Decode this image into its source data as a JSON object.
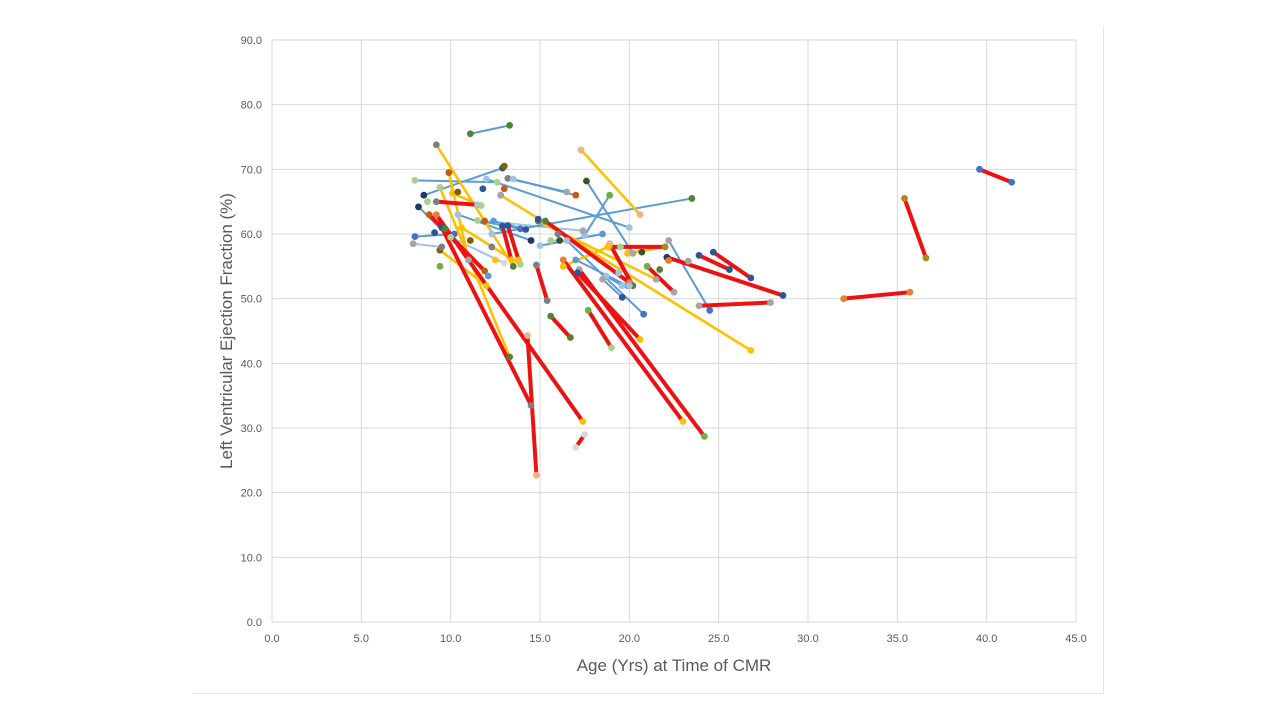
{
  "chart_data": {
    "type": "line",
    "title": "",
    "xlabel": "Age (Yrs) at Time of CMR",
    "ylabel": "Left Ventricular Ejection Fraction (%)",
    "xlim": [
      0,
      45
    ],
    "ylim": [
      0,
      90
    ],
    "xticks": [
      "0.0",
      "5.0",
      "10.0",
      "15.0",
      "20.0",
      "25.0",
      "30.0",
      "35.0",
      "40.0",
      "45.0"
    ],
    "yticks": [
      "0.0",
      "10.0",
      "20.0",
      "30.0",
      "40.0",
      "50.0",
      "60.0",
      "70.0",
      "80.0",
      "90.0"
    ],
    "grid": true,
    "legend": "none",
    "colors": {
      "red": "#ee1111",
      "yellow": "#ffc000",
      "blue": "#5b9bd5",
      "lightblue": "#9dc3e6",
      "axis": "#d9d9d9",
      "text": "#595959"
    },
    "series": [
      {
        "color": "red",
        "x": [
          39.6,
          41.4
        ],
        "y": [
          70.0,
          68.0
        ],
        "c1": "#4472c4",
        "c2": "#4472c4"
      },
      {
        "color": "red",
        "x": [
          35.4,
          36.6
        ],
        "y": [
          65.5,
          56.3
        ],
        "c1": "#b0871f",
        "c2": "#b0871f"
      },
      {
        "color": "red",
        "x": [
          32.0,
          35.7
        ],
        "y": [
          50.0,
          51.0
        ],
        "c1": "#ed7d31",
        "c2": "#ed7d31"
      },
      {
        "color": "red",
        "x": [
          24.7,
          26.8
        ],
        "y": [
          57.2,
          53.2
        ],
        "c1": "#2f5597",
        "c2": "#2f5597"
      },
      {
        "color": "red",
        "x": [
          22.1,
          28.6
        ],
        "y": [
          56.4,
          50.5
        ],
        "c1": "#1f3864",
        "c2": "#2f5597"
      },
      {
        "color": "red",
        "x": [
          23.9,
          25.6
        ],
        "y": [
          56.7,
          54.5
        ],
        "c1": "#2f5597",
        "c2": "#2f5597"
      },
      {
        "color": "red",
        "x": [
          23.9,
          27.9
        ],
        "y": [
          48.9,
          49.4
        ],
        "c1": "#a5a5a5",
        "c2": "#a5a5a5"
      },
      {
        "color": "red",
        "x": [
          18.9,
          22.0
        ],
        "y": [
          58.0,
          58.0
        ],
        "c1": "#b0871f",
        "c2": "#b0871f"
      },
      {
        "color": "red",
        "x": [
          21.0,
          22.5
        ],
        "y": [
          55.0,
          51.0
        ],
        "c1": "#70ad47",
        "c2": "#a5a5a5"
      },
      {
        "color": "red",
        "x": [
          16.3,
          23.0
        ],
        "y": [
          56.0,
          31.0
        ],
        "c1": "#ed7d31",
        "c2": "#ffc000"
      },
      {
        "color": "red",
        "x": [
          17.2,
          24.2
        ],
        "y": [
          54.5,
          28.7
        ],
        "c1": "#a5a5a5",
        "c2": "#70ad47"
      },
      {
        "color": "red",
        "x": [
          17.7,
          19.0
        ],
        "y": [
          48.2,
          42.4
        ],
        "c1": "#70ad47",
        "c2": "#a9d18e"
      },
      {
        "color": "red",
        "x": [
          17.1,
          20.6
        ],
        "y": [
          54.0,
          43.7
        ],
        "c1": "#2f5597",
        "c2": "#ffc000"
      },
      {
        "color": "red",
        "x": [
          15.3,
          20.0
        ],
        "y": [
          62.0,
          52.5
        ],
        "c1": "#548235",
        "c2": "#ed7d31"
      },
      {
        "color": "red",
        "x": [
          14.8,
          15.4
        ],
        "y": [
          55.2,
          49.7
        ],
        "c1": "#7f7f7f",
        "c2": "#7f7f7f"
      },
      {
        "color": "red",
        "x": [
          14.3,
          14.8
        ],
        "y": [
          44.3,
          22.7
        ],
        "c1": "#f4b183",
        "c2": "#f4b183"
      },
      {
        "color": "red",
        "x": [
          15.6,
          16.7
        ],
        "y": [
          47.3,
          44.0
        ],
        "c1": "#548235",
        "c2": "#548235"
      },
      {
        "color": "red",
        "x": [
          17.0,
          17.5
        ],
        "y": [
          27.0,
          29.0
        ],
        "c1": "#d9d9d9",
        "c2": "#d9d9d9"
      },
      {
        "color": "red",
        "x": [
          9.5,
          14.5
        ],
        "y": [
          61.0,
          33.5
        ],
        "c1": "#2f5597",
        "c2": "#7f7f7f"
      },
      {
        "color": "red",
        "x": [
          9.2,
          17.4
        ],
        "y": [
          63.0,
          31.0
        ],
        "c1": "#ed7d31",
        "c2": "#ffc000"
      },
      {
        "color": "red",
        "x": [
          9.2,
          11.5
        ],
        "y": [
          65.0,
          64.5
        ],
        "c1": "#7f7f7f",
        "c2": "#9dc3e6"
      },
      {
        "color": "red",
        "x": [
          8.8,
          11.9
        ],
        "y": [
          63.0,
          54.3
        ],
        "c1": "#c55a11",
        "c2": "#c55a11"
      },
      {
        "color": "red",
        "x": [
          12.9,
          13.4
        ],
        "y": [
          61.2,
          56.0
        ],
        "c1": "#2f5597",
        "c2": "#ffc000"
      },
      {
        "color": "red",
        "x": [
          13.2,
          13.8
        ],
        "y": [
          61.3,
          56.0
        ],
        "c1": "#2f5597",
        "c2": "#ffc000"
      },
      {
        "color": "red",
        "x": [
          18.9,
          20.2
        ],
        "y": [
          58.5,
          52.0
        ],
        "c1": "#f4b183",
        "c2": "#548235"
      },
      {
        "color": "yellow",
        "x": [
          17.3,
          20.6
        ],
        "y": [
          73.0,
          63.0
        ],
        "c1": "#f4b183",
        "c2": "#f4b183"
      },
      {
        "color": "yellow",
        "x": [
          9.2,
          13.5
        ],
        "y": [
          73.8,
          55.0
        ],
        "c1": "#7f7f7f",
        "c2": "#548235"
      },
      {
        "color": "yellow",
        "x": [
          12.8,
          26.8
        ],
        "y": [
          66.0,
          42.0
        ],
        "c1": "#a5a5a5",
        "c2": "#ffc000"
      },
      {
        "color": "yellow",
        "x": [
          9.4,
          13.3
        ],
        "y": [
          67.2,
          41.0
        ],
        "c1": "#a9d18e",
        "c2": "#548235"
      },
      {
        "color": "yellow",
        "x": [
          9.4,
          12.0
        ],
        "y": [
          57.5,
          52.0
        ],
        "c1": "#7f6000",
        "c2": "#ffc000"
      },
      {
        "color": "yellow",
        "x": [
          10.6,
          13.9
        ],
        "y": [
          61.0,
          55.3
        ],
        "c1": "#ffc000",
        "c2": "#a9d18e"
      },
      {
        "color": "yellow",
        "x": [
          9.9,
          11.0
        ],
        "y": [
          69.5,
          56.0
        ],
        "c1": "#c55a11",
        "c2": "#a5a5a5"
      },
      {
        "color": "yellow",
        "x": [
          14.9,
          21.5
        ],
        "y": [
          62.0,
          53.0
        ],
        "c1": "#548235",
        "c2": "#a5a5a5"
      },
      {
        "color": "yellow",
        "x": [
          16.3,
          18.8
        ],
        "y": [
          55.0,
          58.0
        ],
        "c1": "#ffc000",
        "c2": "#ffc000"
      },
      {
        "color": "yellow",
        "x": [
          19.9,
          22.0
        ],
        "y": [
          57.0,
          58.0
        ],
        "c1": "#ffc000",
        "c2": "#b0871f"
      },
      {
        "color": "yellow",
        "x": [
          10.1,
          11.7
        ],
        "y": [
          66.3,
          64.4
        ],
        "c1": "#ffc000",
        "c2": "#a9d18e"
      },
      {
        "color": "blue",
        "x": [
          11.1,
          13.3
        ],
        "y": [
          75.5,
          76.8
        ],
        "c1": "#548235",
        "c2": "#548235"
      },
      {
        "color": "blue",
        "x": [
          8.0,
          12.6
        ],
        "y": [
          68.3,
          68.0
        ],
        "c1": "#a9d18e",
        "c2": "#a9d18e"
      },
      {
        "color": "blue",
        "x": [
          8.5,
          12.9
        ],
        "y": [
          66.0,
          70.2
        ],
        "c1": "#1f3864",
        "c2": "#2f5597"
      },
      {
        "color": "blue",
        "x": [
          12.0,
          20.0
        ],
        "y": [
          68.5,
          61.0
        ],
        "c1": "#9dc3e6",
        "c2": "#9dc3e6"
      },
      {
        "color": "blue",
        "x": [
          13.2,
          16.5
        ],
        "y": [
          68.6,
          66.5
        ],
        "c1": "#7f7f7f",
        "c2": "#a5a5a5"
      },
      {
        "color": "blue",
        "x": [
          13.5,
          17.0
        ],
        "y": [
          68.5,
          66.0
        ],
        "c1": "#9dc3e6",
        "c2": "#c55a11"
      },
      {
        "color": "blue",
        "x": [
          12.3,
          23.5
        ],
        "y": [
          60.0,
          65.5
        ],
        "c1": "#9dc3e6",
        "c2": "#548235"
      },
      {
        "color": "blue",
        "x": [
          8.2,
          12.1
        ],
        "y": [
          64.2,
          53.5
        ],
        "c1": "#1f3864",
        "c2": "#5b9bd5"
      },
      {
        "color": "blue",
        "x": [
          8.0,
          10.2
        ],
        "y": [
          59.6,
          60.0
        ],
        "c1": "#4472c4",
        "c2": "#4472c4"
      },
      {
        "color": "blue",
        "x": [
          10.4,
          14.5
        ],
        "y": [
          63.0,
          59.0
        ],
        "c1": "#9dc3e6",
        "c2": "#1f3864"
      },
      {
        "color": "blue",
        "x": [
          11.5,
          13.9
        ],
        "y": [
          62.1,
          60.8
        ],
        "c1": "#a9d18e",
        "c2": "#4472c4"
      },
      {
        "color": "blue",
        "x": [
          12.4,
          14.2
        ],
        "y": [
          62.0,
          60.7
        ],
        "c1": "#5b9bd5",
        "c2": "#2f5597"
      },
      {
        "color": "blue",
        "x": [
          15.0,
          18.5
        ],
        "y": [
          58.2,
          60.0
        ],
        "c1": "#9dc3e6",
        "c2": "#5b9bd5"
      },
      {
        "color": "blue",
        "x": [
          16.5,
          20.8
        ],
        "y": [
          59.0,
          47.6
        ],
        "c1": "#9dc3e6",
        "c2": "#4472c4"
      },
      {
        "color": "blue",
        "x": [
          17.0,
          19.9
        ],
        "y": [
          56.0,
          52.0
        ],
        "c1": "#5b9bd5",
        "c2": "#5b9bd5"
      },
      {
        "color": "blue",
        "x": [
          18.7,
          19.6
        ],
        "y": [
          53.5,
          52.0
        ],
        "c1": "#9dc3e6",
        "c2": "#9dc3e6"
      },
      {
        "color": "blue",
        "x": [
          19.4,
          20.0
        ],
        "y": [
          54.0,
          52.0
        ],
        "c1": "#9dc3e6",
        "c2": "#9dc3e6"
      },
      {
        "color": "blue",
        "x": [
          18.5,
          19.6
        ],
        "y": [
          53.0,
          50.2
        ],
        "c1": "#a5a5a5",
        "c2": "#2f5597"
      },
      {
        "color": "blue",
        "x": [
          22.2,
          24.5
        ],
        "y": [
          59.0,
          48.2
        ],
        "c1": "#a5a5a5",
        "c2": "#4472c4"
      },
      {
        "color": "blue",
        "x": [
          17.6,
          20.2
        ],
        "y": [
          68.2,
          57.0
        ],
        "c1": "#375623",
        "c2": "#a5a5a5"
      },
      {
        "color": "blue",
        "x": [
          17.5,
          18.9
        ],
        "y": [
          59.8,
          66.0
        ],
        "c1": "#9dc3e6",
        "c2": "#70ad47"
      },
      {
        "color": "lightblue",
        "x": [
          11.9,
          17.4
        ],
        "y": [
          62.0,
          60.5
        ],
        "c1": "#c55a11",
        "c2": "#a5a5a5"
      },
      {
        "color": "lightblue",
        "x": [
          10.0,
          13.0
        ],
        "y": [
          59.5,
          55.5
        ],
        "c1": "#a9d18e",
        "c2": "#d9d9d9"
      },
      {
        "color": "lightblue",
        "x": [
          15.6,
          16.1
        ],
        "y": [
          59.0,
          59.0
        ],
        "c1": "#a9d18e",
        "c2": "#375623"
      },
      {
        "color": "lightblue",
        "x": [
          7.9,
          9.5
        ],
        "y": [
          58.5,
          58.0
        ],
        "c1": "#a5a5a5",
        "c2": "#7f7f7f"
      }
    ],
    "extra_points": [
      {
        "x": 9.4,
        "y": 55.0,
        "c": "#70ad47"
      },
      {
        "x": 9.1,
        "y": 60.2,
        "c": "#2f5597"
      },
      {
        "x": 11.1,
        "y": 59.0,
        "c": "#7f6000"
      },
      {
        "x": 10.4,
        "y": 66.5,
        "c": "#7f6000"
      },
      {
        "x": 12.3,
        "y": 58.0,
        "c": "#7f7f7f"
      },
      {
        "x": 12.5,
        "y": 56.0,
        "c": "#ffc000"
      },
      {
        "x": 14.9,
        "y": 62.3,
        "c": "#2f5597"
      },
      {
        "x": 20.7,
        "y": 57.2,
        "c": "#375623"
      },
      {
        "x": 21.7,
        "y": 54.5,
        "c": "#548235"
      },
      {
        "x": 23.3,
        "y": 55.8,
        "c": "#a5a5a5"
      },
      {
        "x": 16.0,
        "y": 60.0,
        "c": "#7f7f7f"
      },
      {
        "x": 22.2,
        "y": 55.9,
        "c": "#ed7d31"
      },
      {
        "x": 13.0,
        "y": 67.0,
        "c": "#c55a11"
      },
      {
        "x": 13.0,
        "y": 70.5,
        "c": "#7f6000"
      },
      {
        "x": 11.8,
        "y": 67.0,
        "c": "#2f5597"
      },
      {
        "x": 8.7,
        "y": 65.0,
        "c": "#a9d18e"
      },
      {
        "x": 9.7,
        "y": 60.8,
        "c": "#548235"
      },
      {
        "x": 19.5,
        "y": 58.0,
        "c": "#a9d18e"
      }
    ]
  }
}
